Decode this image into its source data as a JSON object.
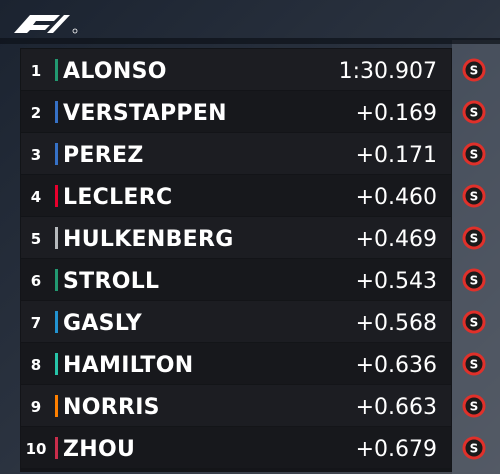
{
  "tower": {
    "rows": [
      {
        "position": 1,
        "driver": "ALONSO",
        "time": "1:30.907",
        "tyre": "S",
        "team_color": "#229971"
      },
      {
        "position": 2,
        "driver": "VERSTAPPEN",
        "time": "+0.169",
        "tyre": "S",
        "team_color": "#3671c6"
      },
      {
        "position": 3,
        "driver": "PEREZ",
        "time": "+0.171",
        "tyre": "S",
        "team_color": "#3671c6"
      },
      {
        "position": 4,
        "driver": "LECLERC",
        "time": "+0.460",
        "tyre": "S",
        "team_color": "#e8002d"
      },
      {
        "position": 5,
        "driver": "HULKENBERG",
        "time": "+0.469",
        "tyre": "S",
        "team_color": "#b6babd"
      },
      {
        "position": 6,
        "driver": "STROLL",
        "time": "+0.543",
        "tyre": "S",
        "team_color": "#229971"
      },
      {
        "position": 7,
        "driver": "GASLY",
        "time": "+0.568",
        "tyre": "S",
        "team_color": "#2293d1"
      },
      {
        "position": 8,
        "driver": "HAMILTON",
        "time": "+0.636",
        "tyre": "S",
        "team_color": "#27c4a8"
      },
      {
        "position": 9,
        "driver": "NORRIS",
        "time": "+0.663",
        "tyre": "S",
        "team_color": "#ff8000"
      },
      {
        "position": 10,
        "driver": "ZHOU",
        "time": "+0.679",
        "tyre": "S",
        "team_color": "#c92d4b"
      }
    ]
  }
}
